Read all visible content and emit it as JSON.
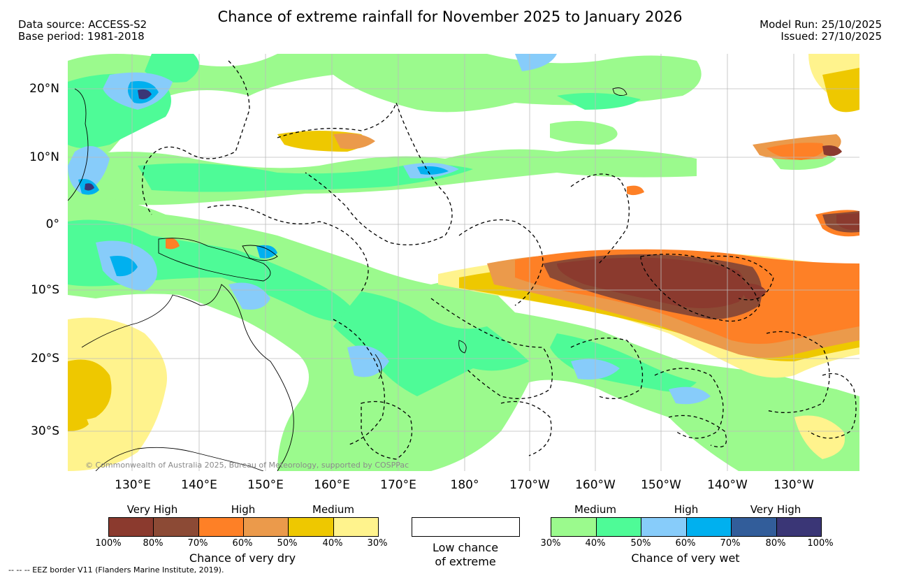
{
  "header": {
    "title": "Chance of extreme rainfall for November 2025 to January 2026",
    "data_source": "Data source: ACCESS-S2",
    "base_period": "Base period: 1981-2018",
    "model_run": "Model Run: 25/10/2025",
    "issued": "Issued: 27/10/2025"
  },
  "map": {
    "lat_labels": [
      "20°N",
      "10°N",
      "0°",
      "10°S",
      "20°S",
      "30°S"
    ],
    "lon_labels": [
      "130°E",
      "140°E",
      "150°E",
      "160°E",
      "170°E",
      "180°",
      "170°W",
      "160°W",
      "150°W",
      "140°W",
      "130°W"
    ],
    "credit": "© Commonwealth of Australia 2025, Bureau of Meteorology, supported by COSPPac"
  },
  "legend": {
    "dry": {
      "categories": [
        "Very High",
        "High",
        "Medium"
      ],
      "colors": [
        "#8b3a2e",
        "#8c4a35",
        "#fe8026",
        "#eb9a4b",
        "#eec800",
        "#fff38d"
      ],
      "ticks": [
        "100%",
        "80%",
        "70%",
        "60%",
        "50%",
        "40%",
        "30%"
      ],
      "title": "Chance of very dry"
    },
    "low": {
      "line1": "Low chance",
      "line2": "of extreme"
    },
    "wet": {
      "categories": [
        "Medium",
        "High",
        "Very High"
      ],
      "colors": [
        "#9bfa8d",
        "#4efb97",
        "#87ccfa",
        "#00b0ef",
        "#325d9a",
        "#3a3676"
      ],
      "ticks": [
        "30%",
        "40%",
        "50%",
        "60%",
        "70%",
        "80%",
        "100%"
      ],
      "title": "Chance of very wet"
    }
  },
  "footer": {
    "eez_note": "-- -- -- EEZ border V11 (Flanders Marine Institute, 2019)."
  }
}
